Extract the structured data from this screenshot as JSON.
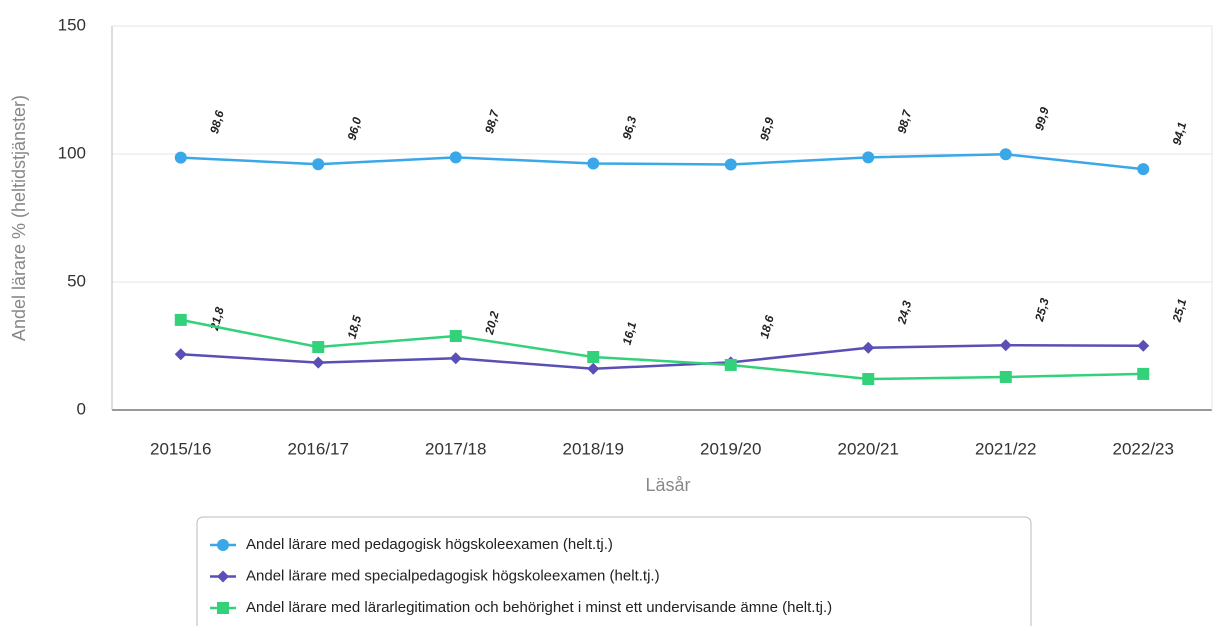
{
  "chart_data": {
    "type": "line",
    "xlabel": "Läsår",
    "ylabel": "Andel lärare % (heltidstjänster)",
    "categories": [
      "2015/16",
      "2016/17",
      "2017/18",
      "2018/19",
      "2019/20",
      "2020/21",
      "2021/22",
      "2022/23"
    ],
    "ylim": [
      0,
      150
    ],
    "yticks": [
      0,
      50,
      100,
      150
    ],
    "grid": true,
    "legend": "bottom",
    "series": [
      {
        "name": "Andel lärare med pedagogisk högskoleexamen (helt.tj.)",
        "color": "#3aa8e8",
        "marker": "circle",
        "values": [
          98.6,
          96.0,
          98.7,
          96.3,
          95.9,
          98.7,
          99.9,
          94.1
        ],
        "value_labels": [
          "98,6",
          "96,0",
          "98,7",
          "96,3",
          "95,9",
          "98,7",
          "99,9",
          "94,1"
        ]
      },
      {
        "name": "Andel lärare med specialpedagogisk högskoleexamen (helt.tj.)",
        "color": "#5a4fb5",
        "marker": "diamond",
        "values": [
          21.8,
          18.5,
          20.2,
          16.1,
          18.6,
          24.3,
          25.3,
          25.1
        ],
        "value_labels": [
          "21,8",
          "18,5",
          "20,2",
          "16,1",
          "18,6",
          "24,3",
          "25,3",
          "25,1"
        ]
      },
      {
        "name": "Andel lärare med lärarlegitimation och behörighet i minst ett undervisande ämne (helt.tj.)",
        "color": "#33d17a",
        "marker": "square",
        "values": [
          35.2,
          24.6,
          28.9,
          20.7,
          17.6,
          12.1,
          12.9,
          14.1
        ]
      }
    ]
  }
}
